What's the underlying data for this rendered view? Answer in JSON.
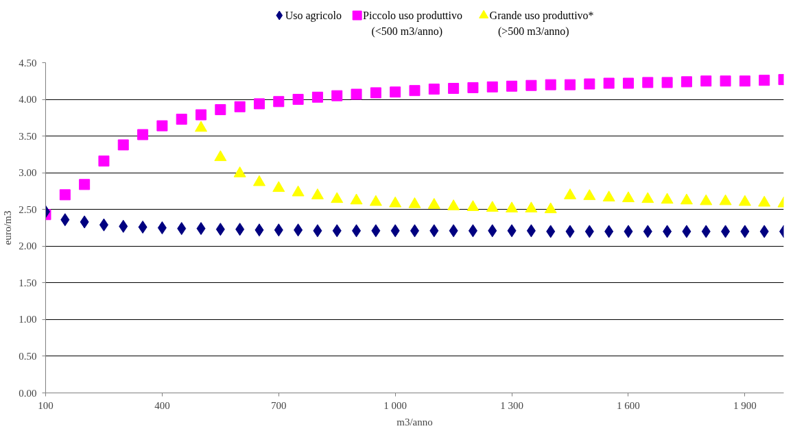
{
  "chart_data": {
    "type": "scatter",
    "xlabel": "m3/anno",
    "ylabel": "euro/m3",
    "x": [
      100,
      150,
      200,
      250,
      300,
      350,
      400,
      450,
      500,
      550,
      600,
      650,
      700,
      750,
      800,
      850,
      900,
      950,
      1000,
      1050,
      1100,
      1150,
      1200,
      1250,
      1300,
      1350,
      1400,
      1450,
      1500,
      1550,
      1600,
      1650,
      1700,
      1750,
      1800,
      1850,
      1900,
      1950,
      2000
    ],
    "series": [
      {
        "name": "Uso agricolo",
        "color": "#000080",
        "marker": "diamond",
        "values": [
          2.47,
          2.36,
          2.33,
          2.29,
          2.27,
          2.26,
          2.25,
          2.24,
          2.24,
          2.23,
          2.23,
          2.22,
          2.22,
          2.22,
          2.21,
          2.21,
          2.21,
          2.21,
          2.21,
          2.21,
          2.21,
          2.21,
          2.21,
          2.21,
          2.21,
          2.21,
          2.2,
          2.2,
          2.2,
          2.2,
          2.2,
          2.2,
          2.2,
          2.2,
          2.2,
          2.2,
          2.2,
          2.2,
          2.2
        ]
      },
      {
        "name": "Piccolo uso produttivo\n(<500 m3/anno)",
        "color": "#ff00ff",
        "marker": "square",
        "values": [
          2.43,
          2.7,
          2.84,
          3.16,
          3.38,
          3.52,
          3.64,
          3.73,
          3.79,
          3.86,
          3.9,
          3.94,
          3.97,
          4.0,
          4.03,
          4.05,
          4.07,
          4.09,
          4.1,
          4.12,
          4.14,
          4.15,
          4.16,
          4.17,
          4.18,
          4.19,
          4.2,
          4.2,
          4.21,
          4.22,
          4.22,
          4.23,
          4.23,
          4.24,
          4.25,
          4.25,
          4.25,
          4.26,
          4.27
        ]
      },
      {
        "name": "Grande uso produttivo*\n(>500 m3/anno)",
        "color": "#ffff00",
        "marker": "triangle",
        "values": [
          null,
          null,
          null,
          null,
          null,
          null,
          null,
          null,
          3.61,
          3.21,
          2.99,
          2.87,
          2.79,
          2.73,
          2.69,
          2.64,
          2.62,
          2.6,
          2.58,
          2.57,
          2.56,
          2.54,
          2.53,
          2.52,
          2.51,
          2.51,
          2.5,
          2.69,
          2.68,
          2.66,
          2.65,
          2.64,
          2.63,
          2.62,
          2.61,
          2.61,
          2.6,
          2.59,
          2.58
        ]
      }
    ],
    "xlim": [
      100,
      2000
    ],
    "xticks": [
      100,
      400,
      700,
      {
        "value": 1000,
        "label": "1 000"
      },
      {
        "value": 1300,
        "label": "1 300"
      },
      {
        "value": 1600,
        "label": "1 600"
      },
      {
        "value": 1900,
        "label": "1 900"
      }
    ],
    "ylim": [
      0,
      4.5
    ],
    "yticks": [
      {
        "value": 0,
        "label": "0.00"
      },
      {
        "value": 0.5,
        "label": "0.50"
      },
      {
        "value": 1,
        "label": "1.00"
      },
      {
        "value": 1.5,
        "label": "1.50"
      },
      {
        "value": 2,
        "label": "2.00"
      },
      {
        "value": 2.5,
        "label": "2.50"
      },
      {
        "value": 3,
        "label": "3.00"
      },
      {
        "value": 3.5,
        "label": "3.50"
      },
      {
        "value": 4,
        "label": "4.00"
      },
      {
        "value": 4.5,
        "label": "4.50"
      }
    ],
    "grid": "y",
    "legend": "top"
  }
}
